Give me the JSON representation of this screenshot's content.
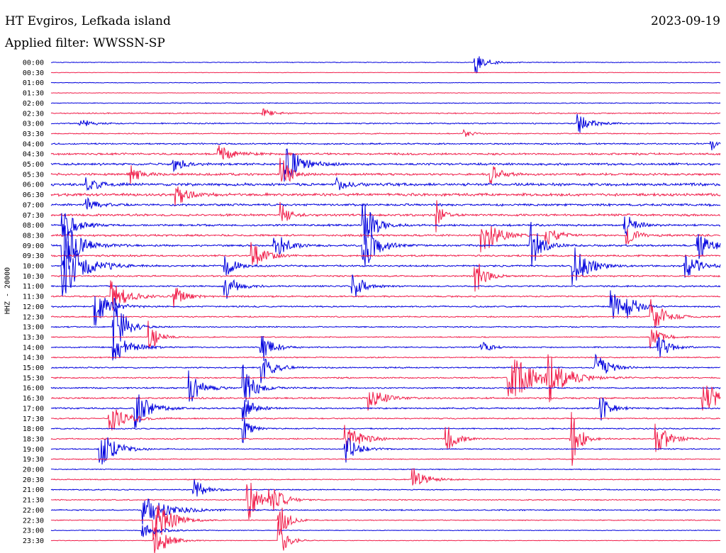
{
  "header": {
    "title": "HT Evgiros, Lefkada island",
    "date": "2023-09-19",
    "filter": "Applied filter: WWSSN-SP"
  },
  "colors": {
    "even_hour": "#0000dd",
    "half_hour": "#f01e4a",
    "background": "#ffffff"
  },
  "chart_data": {
    "type": "line",
    "subtype": "helicorder",
    "title": "HT Evgiros, Lefkada island",
    "date": "2023-09-19",
    "filter": "WWSSN-SP",
    "ylabel": "HHZ - 20000",
    "row_interval_minutes": 30,
    "row_labels": [
      "00:00",
      "00:30",
      "01:00",
      "01:30",
      "02:00",
      "02:30",
      "03:00",
      "03:30",
      "04:00",
      "04:30",
      "05:00",
      "05:30",
      "06:00",
      "06:30",
      "07:00",
      "07:30",
      "08:00",
      "08:30",
      "09:00",
      "09:30",
      "10:00",
      "10:30",
      "11:00",
      "11:30",
      "12:00",
      "12:30",
      "13:00",
      "13:30",
      "14:00",
      "14:30",
      "15:00",
      "15:30",
      "16:00",
      "16:30",
      "17:00",
      "17:30",
      "18:00",
      "18:30",
      "19:00",
      "19:30",
      "20:00",
      "20:30",
      "21:00",
      "21:30",
      "22:00",
      "22:30",
      "23:00",
      "23:30"
    ],
    "noise_levels": [
      0.6,
      0.4,
      0.5,
      0.4,
      0.7,
      0.9,
      1.0,
      0.8,
      1.2,
      1.6,
      1.8,
      1.8,
      2.2,
      2.2,
      1.8,
      1.8,
      1.6,
      1.6,
      1.6,
      1.4,
      1.4,
      1.3,
      1.2,
      1.2,
      1.2,
      1.0,
      1.0,
      0.9,
      1.0,
      0.9,
      1.1,
      1.1,
      1.2,
      1.3,
      1.2,
      1.0,
      1.0,
      1.0,
      0.9,
      0.8,
      0.7,
      0.8,
      0.9,
      0.9,
      1.0,
      0.7,
      0.6,
      0.5
    ],
    "events": [
      {
        "row": 0,
        "minute": 19.0,
        "amp": 18,
        "dur": 1.2
      },
      {
        "row": 6,
        "minute": 1.3,
        "amp": 6,
        "dur": 1.5
      },
      {
        "row": 6,
        "minute": 23.6,
        "amp": 16,
        "dur": 1.4
      },
      {
        "row": 5,
        "minute": 9.5,
        "amp": 7,
        "dur": 1.2
      },
      {
        "row": 7,
        "minute": 18.5,
        "amp": 6,
        "dur": 1.0
      },
      {
        "row": 8,
        "minute": 29.6,
        "amp": 10,
        "dur": 0.6
      },
      {
        "row": 9,
        "minute": 7.5,
        "amp": 13,
        "dur": 1.6
      },
      {
        "row": 10,
        "minute": 10.5,
        "amp": 28,
        "dur": 1.8
      },
      {
        "row": 10,
        "minute": 5.5,
        "amp": 11,
        "dur": 1.3
      },
      {
        "row": 11,
        "minute": 3.5,
        "amp": 16,
        "dur": 1.2
      },
      {
        "row": 11,
        "minute": 10.3,
        "amp": 26,
        "dur": 1.0
      },
      {
        "row": 11,
        "minute": 19.7,
        "amp": 16,
        "dur": 1.2
      },
      {
        "row": 12,
        "minute": 1.6,
        "amp": 10,
        "dur": 1.4
      },
      {
        "row": 12,
        "minute": 12.8,
        "amp": 9,
        "dur": 1.2
      },
      {
        "row": 13,
        "minute": 5.6,
        "amp": 18,
        "dur": 1.4
      },
      {
        "row": 14,
        "minute": 1.6,
        "amp": 10,
        "dur": 1.2
      },
      {
        "row": 15,
        "minute": 10.3,
        "amp": 18,
        "dur": 1.0
      },
      {
        "row": 15,
        "minute": 17.3,
        "amp": 24,
        "dur": 0.6
      },
      {
        "row": 16,
        "minute": 0.5,
        "amp": 22,
        "dur": 1.6
      },
      {
        "row": 16,
        "minute": 14.0,
        "amp": 36,
        "dur": 1.3
      },
      {
        "row": 16,
        "minute": 25.7,
        "amp": 26,
        "dur": 1.0
      },
      {
        "row": 17,
        "minute": 19.3,
        "amp": 34,
        "dur": 1.5
      },
      {
        "row": 17,
        "minute": 22.2,
        "amp": 16,
        "dur": 1.2
      },
      {
        "row": 17,
        "minute": 25.8,
        "amp": 14,
        "dur": 1.2
      },
      {
        "row": 18,
        "minute": 0.5,
        "amp": 44,
        "dur": 1.8
      },
      {
        "row": 18,
        "minute": 10.0,
        "amp": 22,
        "dur": 1.3
      },
      {
        "row": 18,
        "minute": 14.0,
        "amp": 38,
        "dur": 1.4
      },
      {
        "row": 18,
        "minute": 21.5,
        "amp": 34,
        "dur": 1.2
      },
      {
        "row": 18,
        "minute": 29.0,
        "amp": 22,
        "dur": 1.5
      },
      {
        "row": 19,
        "minute": 9.0,
        "amp": 20,
        "dur": 1.5
      },
      {
        "row": 20,
        "minute": 0.5,
        "amp": 48,
        "dur": 2.4
      },
      {
        "row": 20,
        "minute": 7.8,
        "amp": 16,
        "dur": 1.2
      },
      {
        "row": 20,
        "minute": 23.4,
        "amp": 38,
        "dur": 1.6
      },
      {
        "row": 20,
        "minute": 28.4,
        "amp": 24,
        "dur": 1.4
      },
      {
        "row": 21,
        "minute": 19.0,
        "amp": 28,
        "dur": 1.2
      },
      {
        "row": 22,
        "minute": 7.8,
        "amp": 20,
        "dur": 1.3
      },
      {
        "row": 22,
        "minute": 13.5,
        "amp": 32,
        "dur": 1.0
      },
      {
        "row": 23,
        "minute": 2.7,
        "amp": 22,
        "dur": 1.8
      },
      {
        "row": 23,
        "minute": 5.5,
        "amp": 16,
        "dur": 1.3
      },
      {
        "row": 24,
        "minute": 1.9,
        "amp": 32,
        "dur": 1.6
      },
      {
        "row": 24,
        "minute": 25.1,
        "amp": 24,
        "dur": 1.3
      },
      {
        "row": 24,
        "minute": 25.8,
        "amp": 24,
        "dur": 1.0
      },
      {
        "row": 25,
        "minute": 26.9,
        "amp": 28,
        "dur": 1.5
      },
      {
        "row": 26,
        "minute": 2.8,
        "amp": 54,
        "dur": 1.2
      },
      {
        "row": 27,
        "minute": 4.4,
        "amp": 26,
        "dur": 1.0
      },
      {
        "row": 27,
        "minute": 26.9,
        "amp": 16,
        "dur": 1.2
      },
      {
        "row": 28,
        "minute": 2.8,
        "amp": 22,
        "dur": 1.8
      },
      {
        "row": 28,
        "minute": 9.4,
        "amp": 28,
        "dur": 1.2
      },
      {
        "row": 28,
        "minute": 19.3,
        "amp": 9,
        "dur": 1.0
      },
      {
        "row": 28,
        "minute": 27.2,
        "amp": 18,
        "dur": 1.3
      },
      {
        "row": 30,
        "minute": 9.4,
        "amp": 24,
        "dur": 1.4
      },
      {
        "row": 30,
        "minute": 24.4,
        "amp": 20,
        "dur": 1.6
      },
      {
        "row": 31,
        "minute": 20.5,
        "amp": 40,
        "dur": 2.6
      },
      {
        "row": 31,
        "minute": 22.2,
        "amp": 36,
        "dur": 2.0
      },
      {
        "row": 32,
        "minute": 6.2,
        "amp": 24,
        "dur": 1.4
      },
      {
        "row": 32,
        "minute": 8.6,
        "amp": 34,
        "dur": 1.2
      },
      {
        "row": 33,
        "minute": 14.2,
        "amp": 18,
        "dur": 1.6
      },
      {
        "row": 33,
        "minute": 29.2,
        "amp": 28,
        "dur": 2.6
      },
      {
        "row": 34,
        "minute": 3.8,
        "amp": 28,
        "dur": 1.6
      },
      {
        "row": 34,
        "minute": 8.6,
        "amp": 20,
        "dur": 1.2
      },
      {
        "row": 34,
        "minute": 24.6,
        "amp": 20,
        "dur": 1.2
      },
      {
        "row": 35,
        "minute": 2.6,
        "amp": 22,
        "dur": 1.8
      },
      {
        "row": 36,
        "minute": 8.6,
        "amp": 22,
        "dur": 0.8
      },
      {
        "row": 37,
        "minute": 13.2,
        "amp": 20,
        "dur": 1.8
      },
      {
        "row": 37,
        "minute": 17.7,
        "amp": 22,
        "dur": 1.2
      },
      {
        "row": 37,
        "minute": 23.3,
        "amp": 46,
        "dur": 1.0
      },
      {
        "row": 37,
        "minute": 27.1,
        "amp": 26,
        "dur": 1.5
      },
      {
        "row": 38,
        "minute": 2.2,
        "amp": 28,
        "dur": 1.8
      },
      {
        "row": 38,
        "minute": 13.2,
        "amp": 20,
        "dur": 1.4
      },
      {
        "row": 41,
        "minute": 16.2,
        "amp": 18,
        "dur": 1.6
      },
      {
        "row": 42,
        "minute": 6.4,
        "amp": 18,
        "dur": 1.2
      },
      {
        "row": 43,
        "minute": 8.8,
        "amp": 36,
        "dur": 1.2
      },
      {
        "row": 43,
        "minute": 9.8,
        "amp": 22,
        "dur": 1.4
      },
      {
        "row": 44,
        "minute": 4.1,
        "amp": 22,
        "dur": 2.8
      },
      {
        "row": 45,
        "minute": 4.6,
        "amp": 36,
        "dur": 1.8
      },
      {
        "row": 45,
        "minute": 10.2,
        "amp": 30,
        "dur": 1.0
      },
      {
        "row": 46,
        "minute": 4.1,
        "amp": 10,
        "dur": 1.8
      },
      {
        "row": 47,
        "minute": 4.6,
        "amp": 30,
        "dur": 1.4
      },
      {
        "row": 47,
        "minute": 10.2,
        "amp": 26,
        "dur": 1.0
      }
    ]
  }
}
